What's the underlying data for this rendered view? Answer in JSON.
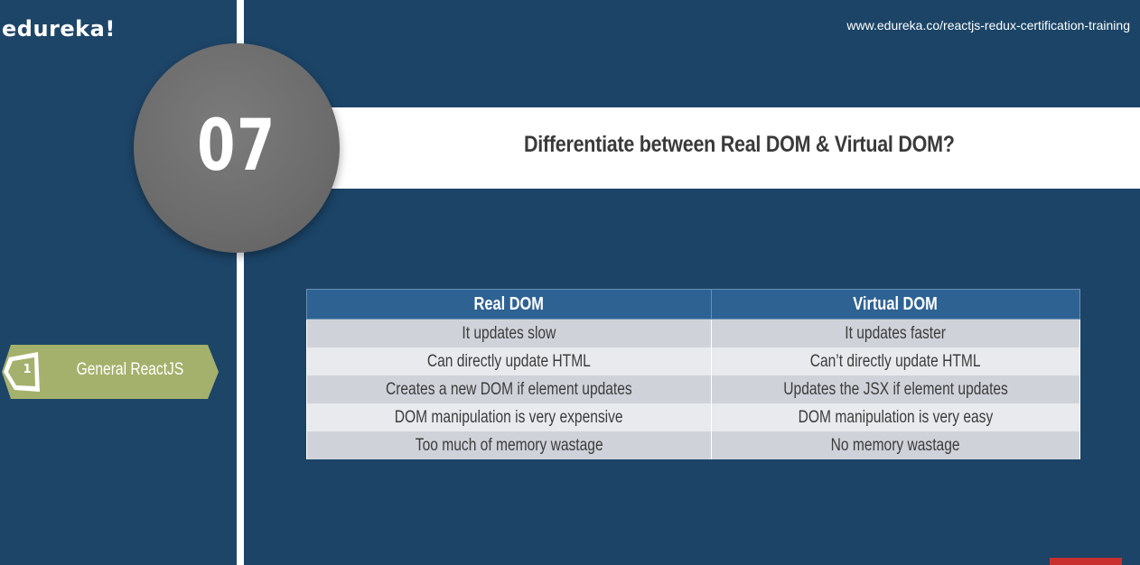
{
  "header": {
    "logo": "edureka!",
    "url": "www.edureka.co/reactjs-redux-certification-training"
  },
  "question": {
    "number": "07",
    "title": "Differentiate between Real DOM & Virtual DOM?"
  },
  "sidebar": {
    "items": [
      {
        "number": "1",
        "label": "General ReactJS"
      }
    ]
  },
  "table": {
    "columns": [
      "Real DOM",
      "Virtual DOM"
    ],
    "rows": [
      [
        "It updates slow",
        "It updates faster"
      ],
      [
        "Can directly update HTML",
        "Can’t directly update HTML"
      ],
      [
        "Creates a new DOM if element updates",
        "Updates the JSX if element updates"
      ],
      [
        "DOM manipulation is very expensive",
        "DOM manipulation is very easy"
      ],
      [
        "Too much of memory wastage",
        "No memory wastage"
      ]
    ]
  },
  "colors": {
    "background": "#1c4468",
    "header_row": "#2e6293",
    "nav_tag": "#a4b16c",
    "accent_red": "#c8302f"
  }
}
